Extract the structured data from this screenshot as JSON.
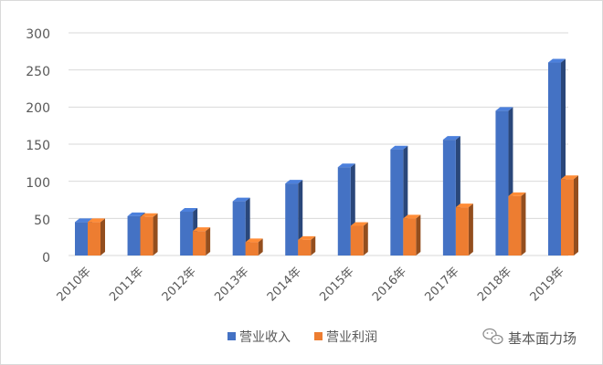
{
  "chart_data": {
    "type": "bar",
    "categories": [
      "2010年",
      "2011年",
      "2012年",
      "2013年",
      "2014年",
      "2015年",
      "2016年",
      "2017年",
      "2018年",
      "2019年"
    ],
    "series": [
      {
        "name": "营业收入",
        "color": "#4472c4",
        "values": [
          45,
          53,
          59,
          73,
          97,
          119,
          143,
          156,
          195,
          260
        ]
      },
      {
        "name": "营业利润",
        "color": "#ed7d31",
        "values": [
          45,
          52,
          33,
          18,
          21,
          40,
          50,
          65,
          80,
          103
        ]
      }
    ],
    "y_ticks": [
      "300",
      "250",
      "200",
      "150",
      "100",
      "50",
      "0"
    ],
    "ylim": [
      0,
      300
    ],
    "grid": true,
    "legend_position": "bottom",
    "style": "3d-clustered-column"
  },
  "watermark": {
    "text": "基本面力场",
    "icon": "wechat-icon"
  }
}
